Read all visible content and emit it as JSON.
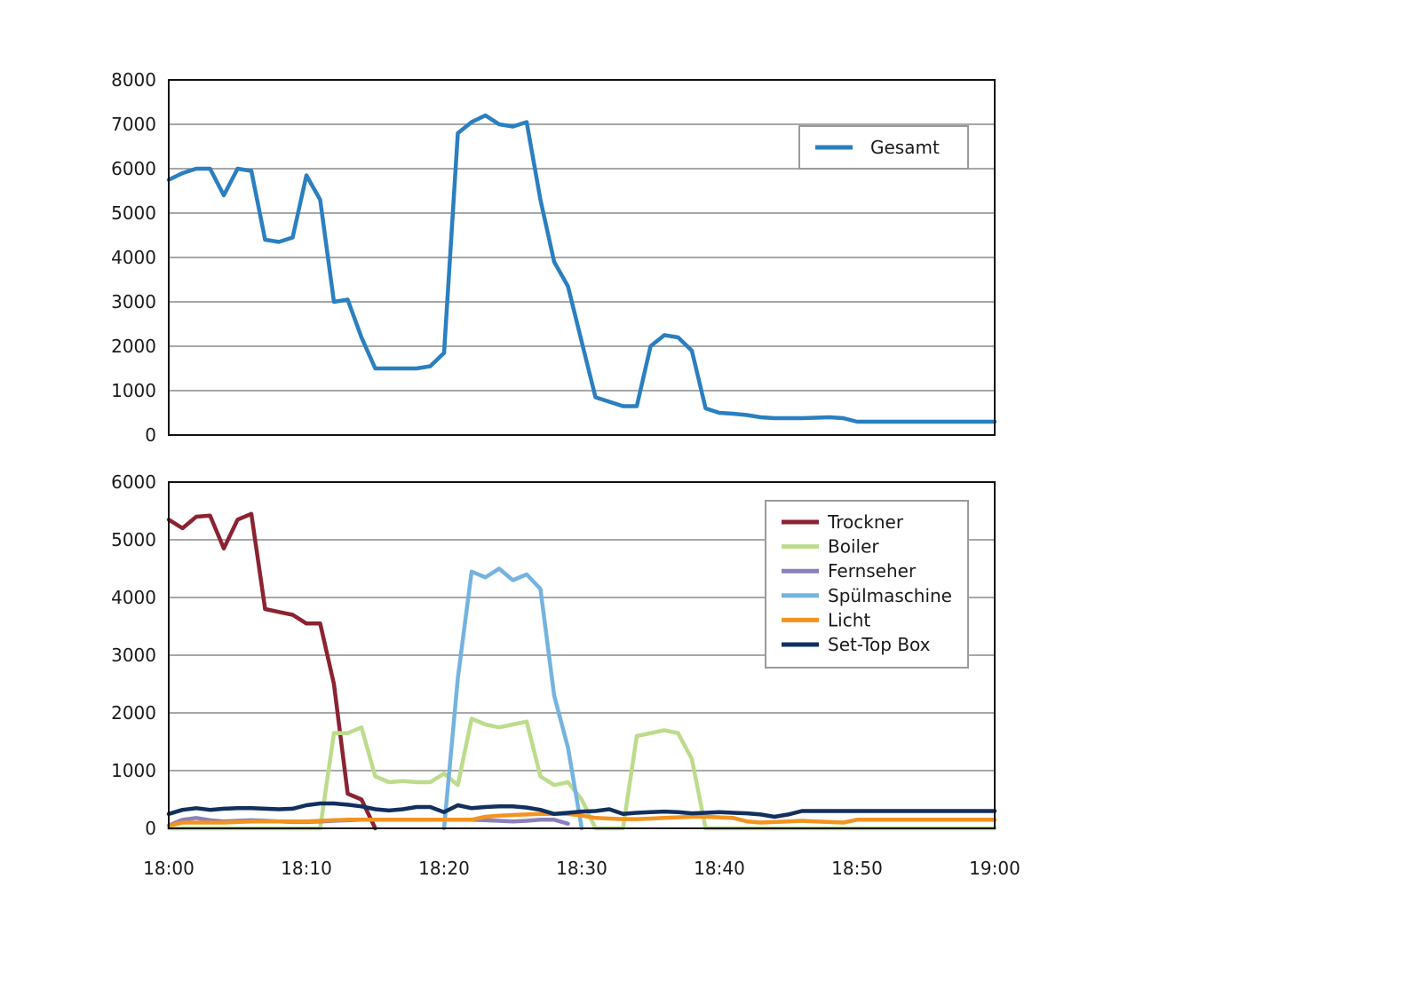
{
  "chart_data": [
    {
      "type": "line",
      "ylim": [
        0,
        8000
      ],
      "yticks": [
        0,
        1000,
        2000,
        3000,
        4000,
        5000,
        6000,
        7000,
        8000
      ],
      "grid": true,
      "legend": "top-right",
      "x": [
        "18:00",
        "18:01",
        "18:02",
        "18:03",
        "18:04",
        "18:05",
        "18:06",
        "18:07",
        "18:08",
        "18:09",
        "18:10",
        "18:11",
        "18:12",
        "18:13",
        "18:14",
        "18:15",
        "18:16",
        "18:17",
        "18:18",
        "18:19",
        "18:20",
        "18:21",
        "18:22",
        "18:23",
        "18:24",
        "18:25",
        "18:26",
        "18:27",
        "18:28",
        "18:29",
        "18:30",
        "18:31",
        "18:32",
        "18:33",
        "18:34",
        "18:35",
        "18:36",
        "18:37",
        "18:38",
        "18:39",
        "18:40",
        "18:41",
        "18:42",
        "18:43",
        "18:44",
        "18:45",
        "18:46",
        "18:47",
        "18:48",
        "18:49",
        "18:50",
        "18:51",
        "18:52",
        "18:53",
        "18:54",
        "18:55",
        "18:56",
        "18:57",
        "18:58",
        "18:59",
        "19:00"
      ],
      "series": [
        {
          "name": "Gesamt",
          "color": "#2a7fc0",
          "values": [
            5750,
            5900,
            6000,
            6000,
            5400,
            6000,
            5950,
            4400,
            4350,
            4450,
            5850,
            5300,
            3000,
            3050,
            2200,
            1500,
            1500,
            1500,
            1500,
            1550,
            1850,
            6800,
            7050,
            7200,
            7000,
            6950,
            7050,
            5300,
            3900,
            3350,
            2100,
            850,
            750,
            650,
            650,
            2000,
            2250,
            2200,
            1900,
            600,
            500,
            480,
            450,
            400,
            380,
            380,
            380,
            390,
            400,
            380,
            300,
            300,
            300,
            300,
            300,
            300,
            300,
            300,
            300,
            300,
            300
          ]
        }
      ]
    },
    {
      "type": "line",
      "ylim": [
        0,
        6000
      ],
      "yticks": [
        0,
        1000,
        2000,
        3000,
        4000,
        5000,
        6000
      ],
      "grid": true,
      "legend": "top-right",
      "x": [
        "18:00",
        "18:01",
        "18:02",
        "18:03",
        "18:04",
        "18:05",
        "18:06",
        "18:07",
        "18:08",
        "18:09",
        "18:10",
        "18:11",
        "18:12",
        "18:13",
        "18:14",
        "18:15",
        "18:16",
        "18:17",
        "18:18",
        "18:19",
        "18:20",
        "18:21",
        "18:22",
        "18:23",
        "18:24",
        "18:25",
        "18:26",
        "18:27",
        "18:28",
        "18:29",
        "18:30",
        "18:31",
        "18:32",
        "18:33",
        "18:34",
        "18:35",
        "18:36",
        "18:37",
        "18:38",
        "18:39",
        "18:40",
        "18:41",
        "18:42",
        "18:43",
        "18:44",
        "18:45",
        "18:46",
        "18:47",
        "18:48",
        "18:49",
        "18:50",
        "18:51",
        "18:52",
        "18:53",
        "18:54",
        "18:55",
        "18:56",
        "18:57",
        "18:58",
        "18:59",
        "19:00"
      ],
      "series": [
        {
          "name": "Trockner",
          "color": "#8b2332",
          "values": [
            5350,
            5200,
            5400,
            5420,
            4850,
            5350,
            5450,
            3800,
            3750,
            3700,
            3550,
            3550,
            2500,
            600,
            500,
            0,
            null,
            null,
            null,
            null,
            null,
            null,
            null,
            null,
            null,
            null,
            null,
            null,
            null,
            null,
            null,
            null,
            null,
            null,
            null,
            null,
            null,
            null,
            null,
            null,
            null,
            null,
            null,
            null,
            null,
            null,
            null,
            null,
            null,
            null,
            null,
            null,
            null,
            null,
            null,
            null,
            null,
            null,
            null,
            null,
            null
          ]
        },
        {
          "name": "Boiler",
          "color": "#bcdc8c",
          "values": [
            0,
            0,
            0,
            0,
            0,
            0,
            0,
            0,
            0,
            0,
            0,
            0,
            1650,
            1650,
            1750,
            900,
            800,
            820,
            800,
            800,
            950,
            750,
            1900,
            1800,
            1750,
            1800,
            1850,
            900,
            750,
            800,
            500,
            0,
            0,
            0,
            1600,
            1650,
            1700,
            1650,
            1200,
            0,
            0,
            0,
            0,
            0,
            0,
            0,
            0,
            0,
            0,
            0,
            0,
            0,
            0,
            0,
            0,
            0,
            0,
            0,
            0,
            0,
            0
          ]
        },
        {
          "name": "Fernseher",
          "color": "#8a80bc",
          "values": [
            50,
            150,
            180,
            140,
            120,
            130,
            140,
            130,
            120,
            110,
            110,
            120,
            130,
            140,
            150,
            150,
            150,
            150,
            150,
            150,
            150,
            150,
            150,
            140,
            130,
            120,
            130,
            150,
            150,
            80,
            null,
            null,
            null,
            null,
            null,
            null,
            null,
            null,
            null,
            null,
            null,
            null,
            null,
            null,
            null,
            null,
            null,
            null,
            null,
            null,
            null,
            null,
            null,
            null,
            null,
            null,
            null,
            null,
            null,
            null,
            null
          ]
        },
        {
          "name": "Spülmaschine",
          "color": "#74b3e0",
          "values": [
            null,
            null,
            null,
            null,
            null,
            null,
            null,
            null,
            null,
            null,
            null,
            null,
            null,
            null,
            null,
            null,
            null,
            null,
            null,
            null,
            0,
            2600,
            4450,
            4350,
            4500,
            4300,
            4400,
            4150,
            2300,
            1400,
            0,
            null,
            null,
            null,
            null,
            null,
            null,
            null,
            null,
            null,
            null,
            null,
            null,
            null,
            null,
            null,
            null,
            null,
            null,
            null,
            null,
            null,
            null,
            null,
            null,
            null,
            null,
            null,
            null,
            null,
            null
          ]
        },
        {
          "name": "Licht",
          "color": "#f39320",
          "values": [
            50,
            100,
            100,
            100,
            100,
            110,
            120,
            120,
            120,
            120,
            120,
            130,
            140,
            150,
            150,
            150,
            150,
            150,
            150,
            150,
            150,
            150,
            150,
            200,
            220,
            230,
            240,
            250,
            250,
            250,
            220,
            180,
            170,
            160,
            160,
            170,
            180,
            190,
            200,
            200,
            190,
            180,
            120,
            100,
            110,
            120,
            130,
            120,
            110,
            100,
            150,
            150,
            150,
            150,
            150,
            150,
            150,
            150,
            150,
            150,
            150
          ]
        },
        {
          "name": "Set-Top Box",
          "color": "#12305e",
          "values": [
            250,
            320,
            350,
            320,
            340,
            350,
            350,
            340,
            330,
            340,
            400,
            430,
            430,
            410,
            380,
            330,
            310,
            330,
            370,
            370,
            280,
            400,
            350,
            370,
            380,
            380,
            360,
            320,
            250,
            270,
            290,
            300,
            330,
            250,
            270,
            280,
            290,
            280,
            260,
            270,
            280,
            270,
            260,
            240,
            200,
            240,
            300,
            300,
            300,
            300,
            300,
            300,
            300,
            300,
            300,
            300,
            300,
            300,
            300,
            300,
            300
          ]
        }
      ]
    }
  ],
  "x_tick_labels": [
    "18:00",
    "18:10",
    "18:20",
    "18:30",
    "18:40",
    "18:50",
    "19:00"
  ]
}
